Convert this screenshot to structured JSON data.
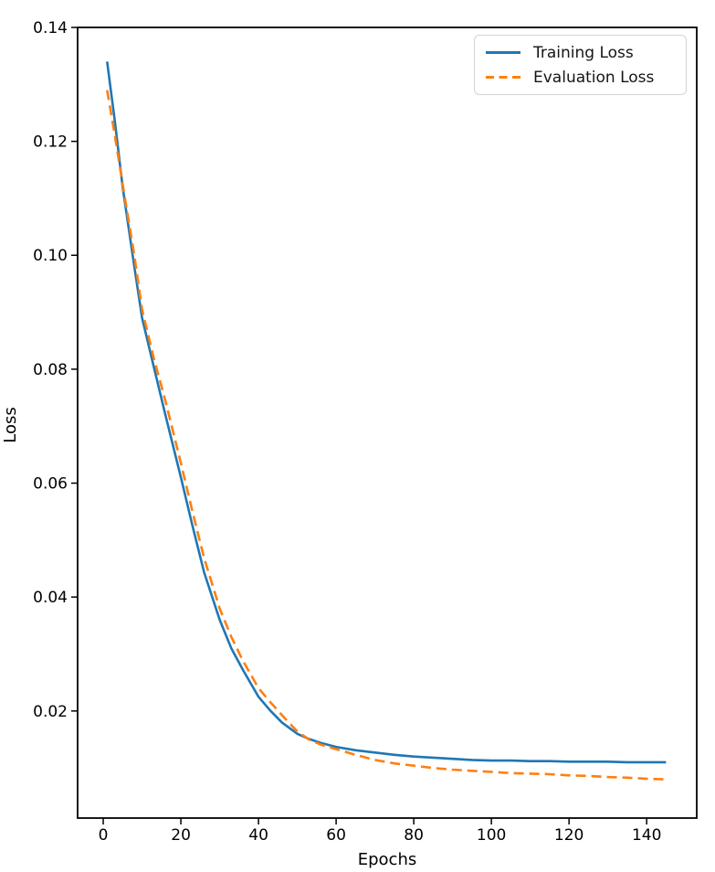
{
  "figure": {
    "background": "#ffffff",
    "text_color": "#000000",
    "axis_color": "#000000"
  },
  "chart_data": {
    "type": "line",
    "title": "",
    "xlabel": "Epochs",
    "ylabel": "Loss",
    "xlim": [
      -6.6,
      152.9
    ],
    "ylim": [
      0.0012,
      0.14
    ],
    "xticks": [
      0,
      20,
      40,
      60,
      80,
      100,
      120,
      140
    ],
    "yticks": [
      0.02,
      0.04,
      0.06,
      0.08,
      0.1,
      0.12,
      0.14
    ],
    "ytick_labels": [
      "0.02",
      "0.04",
      "0.06",
      "0.08",
      "0.10",
      "0.12",
      "0.14"
    ],
    "grid": false,
    "legend_position": "upper right",
    "x": [
      1,
      3,
      5,
      8,
      10,
      13,
      16,
      20,
      23,
      26,
      30,
      33,
      36,
      40,
      43,
      46,
      50,
      53,
      56,
      60,
      65,
      70,
      75,
      80,
      85,
      90,
      95,
      100,
      105,
      110,
      115,
      120,
      125,
      130,
      135,
      140,
      145
    ],
    "series": [
      {
        "name": "Training Loss",
        "color": "#1f77b4",
        "style": "solid",
        "values": [
          0.134,
          0.1235,
          0.112,
          0.098,
          0.089,
          0.0805,
          0.072,
          0.061,
          0.0525,
          0.0443,
          0.036,
          0.031,
          0.0272,
          0.0225,
          0.0201,
          0.018,
          0.016,
          0.0151,
          0.0144,
          0.0137,
          0.0131,
          0.0127,
          0.0123,
          0.012,
          0.0118,
          0.0116,
          0.0114,
          0.0113,
          0.0113,
          0.0112,
          0.0112,
          0.0111,
          0.0111,
          0.0111,
          0.011,
          0.011,
          0.011
        ]
      },
      {
        "name": "Evaluation Loss",
        "color": "#ff7f0e",
        "style": "dashed",
        "values": [
          0.129,
          0.121,
          0.1125,
          0.1,
          0.0905,
          0.082,
          0.0745,
          0.0635,
          0.055,
          0.0468,
          0.038,
          0.033,
          0.0288,
          0.024,
          0.0216,
          0.0193,
          0.0164,
          0.015,
          0.0141,
          0.0133,
          0.0123,
          0.0114,
          0.0108,
          0.0104,
          0.01,
          0.0097,
          0.0095,
          0.0093,
          0.0091,
          0.009,
          0.0089,
          0.0087,
          0.0086,
          0.0084,
          0.0083,
          0.0081,
          0.008
        ]
      }
    ]
  }
}
